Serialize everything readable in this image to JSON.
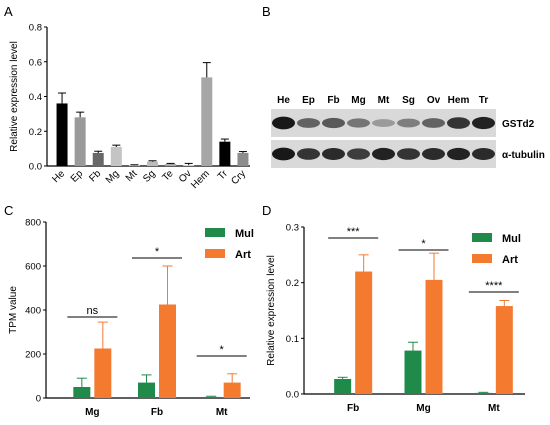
{
  "panels": {
    "A": {
      "label": "A"
    },
    "B": {
      "label": "B"
    },
    "C": {
      "label": "C"
    },
    "D": {
      "label": "D"
    }
  },
  "blot": {
    "lanes": [
      "He",
      "Ep",
      "Fb",
      "Mg",
      "Mt",
      "Sg",
      "Ov",
      "Hem",
      "Tr"
    ],
    "rows": [
      {
        "name": "GSTd2",
        "intensity": [
          0.95,
          0.55,
          0.6,
          0.45,
          0.25,
          0.4,
          0.55,
          0.8,
          0.9
        ]
      },
      {
        "name": "α-tubulin",
        "intensity": [
          0.95,
          0.8,
          0.85,
          0.75,
          0.9,
          0.8,
          0.85,
          0.9,
          0.85
        ]
      }
    ]
  },
  "chart_data": [
    {
      "panel": "A",
      "type": "bar",
      "categories": [
        "He",
        "Ep",
        "Fb",
        "Mg",
        "Mt",
        "Sg",
        "Te",
        "Ov",
        "Hem",
        "Tr",
        "Cry"
      ],
      "values": [
        0.36,
        0.28,
        0.075,
        0.11,
        0.005,
        0.025,
        0.012,
        0.005,
        0.51,
        0.14,
        0.075
      ],
      "errors": [
        0.06,
        0.03,
        0.01,
        0.01,
        0.002,
        0.005,
        0.003,
        0.01,
        0.085,
        0.015,
        0.008
      ],
      "colors": [
        "#000000",
        "#9a9a9a",
        "#686868",
        "#c4c4c4",
        "#d4d4d4",
        "#bcbcbc",
        "#a8a8a8",
        "#d8d8d8",
        "#a6a6a6",
        "#000000",
        "#8c8c8c"
      ],
      "xlabel": "",
      "ylabel": "Relative expression level",
      "ylim": [
        0,
        0.8
      ],
      "yticks": [
        "0.0",
        "0.2",
        "0.4",
        "0.6",
        "0.8"
      ]
    },
    {
      "panel": "C",
      "type": "bar",
      "categories": [
        "Mg",
        "Fb",
        "Mt"
      ],
      "series": [
        {
          "name": "Mul",
          "color": "#1f8a4a",
          "values": [
            50,
            70,
            5
          ],
          "errors": [
            40,
            35,
            3
          ]
        },
        {
          "name": "Art",
          "color": "#f47a30",
          "values": [
            225,
            425,
            70
          ],
          "errors": [
            120,
            175,
            40
          ]
        }
      ],
      "significance": [
        {
          "category": "Mg",
          "text": "ns"
        },
        {
          "category": "Fb",
          "text": "*"
        },
        {
          "category": "Mt",
          "text": "*"
        }
      ],
      "xlabel": "",
      "ylabel": "TPM value",
      "ylim": [
        0,
        800
      ],
      "yticks": [
        "0",
        "200",
        "400",
        "600",
        "800"
      ]
    },
    {
      "panel": "D",
      "type": "bar",
      "categories": [
        "Fb",
        "Mg",
        "Mt"
      ],
      "series": [
        {
          "name": "Mul",
          "color": "#1f8a4a",
          "values": [
            0.027,
            0.078,
            0.002
          ],
          "errors": [
            0.003,
            0.015,
            0.001
          ]
        },
        {
          "name": "Art",
          "color": "#f47a30",
          "values": [
            0.22,
            0.205,
            0.158
          ],
          "errors": [
            0.03,
            0.048,
            0.01
          ]
        }
      ],
      "significance": [
        {
          "category": "Fb",
          "text": "***"
        },
        {
          "category": "Mg",
          "text": "*"
        },
        {
          "category": "Mt",
          "text": "****"
        }
      ],
      "xlabel": "",
      "ylabel": "Relative expression level",
      "ylim": [
        0,
        0.3
      ],
      "yticks": [
        "0.0",
        "0.1",
        "0.2",
        "0.3"
      ]
    }
  ]
}
